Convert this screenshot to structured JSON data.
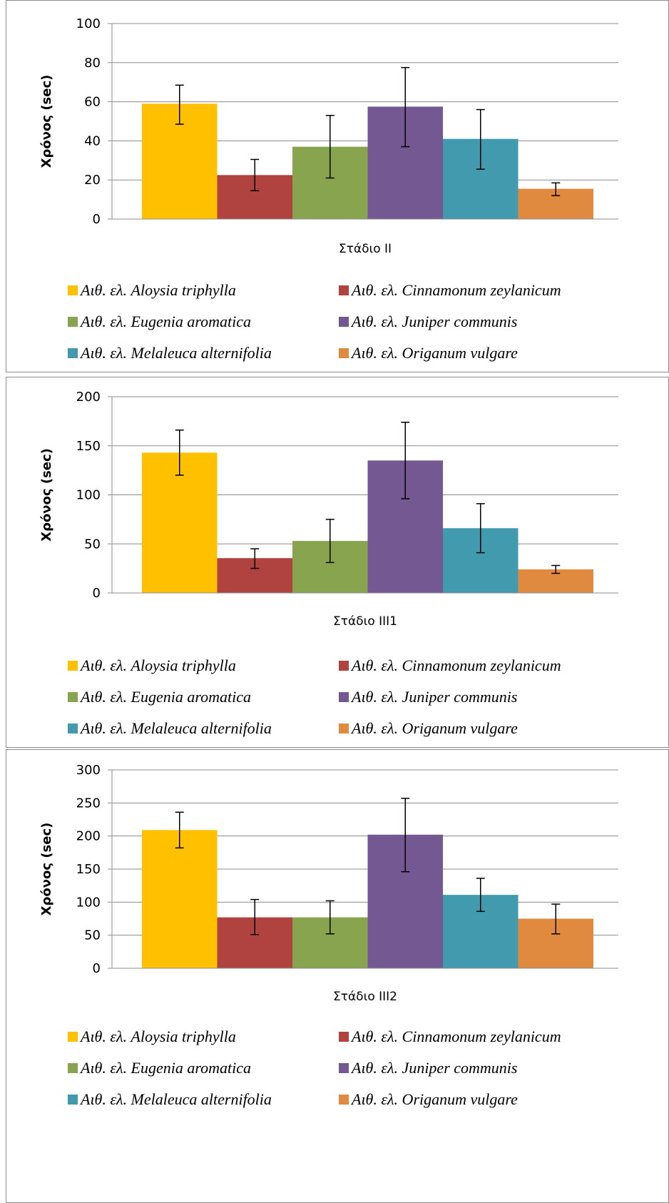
{
  "colors": [
    "#FFC000",
    "#B0433F",
    "#88A44F",
    "#735891",
    "#419AAE",
    "#E08A40"
  ],
  "legend": [
    "Αιθ. ελ. Aloysia triphylla",
    "Αιθ. ελ. Cinnamonum zeylanicum",
    "Αιθ. ελ. Eugenia aromatica",
    "Αιθ. ελ. Juniper communis",
    "Αιθ. ελ. Melaleuca alternifolia",
    "Αιθ. ελ. Origanum vulgare"
  ],
  "chart_data": [
    {
      "type": "bar",
      "ylabel": "Χρόνος (sec)",
      "category": "Στάδιο ΙΙ",
      "ylim": [
        0,
        100
      ],
      "yticks": [
        0,
        20,
        40,
        60,
        80,
        100
      ],
      "series": [
        {
          "name": "Αιθ. ελ. Aloysia triphylla",
          "value": 59,
          "error": [
            48.5,
            68.5
          ]
        },
        {
          "name": "Αιθ. ελ. Cinnamonum zeylanicum",
          "value": 22.5,
          "error": [
            14.5,
            30.5
          ]
        },
        {
          "name": "Αιθ. ελ. Eugenia aromatica",
          "value": 37,
          "error": [
            21,
            53
          ]
        },
        {
          "name": "Αιθ. ελ. Juniper communis",
          "value": 57.5,
          "error": [
            37,
            77.5
          ]
        },
        {
          "name": "Αιθ. ελ. Melaleuca alternifolia",
          "value": 41,
          "error": [
            25.5,
            56
          ]
        },
        {
          "name": "Αιθ. ελ. Origanum vulgare",
          "value": 15.5,
          "error": [
            12,
            18.5
          ]
        }
      ],
      "grid": true,
      "legend_position": "bottom"
    },
    {
      "type": "bar",
      "ylabel": "Χρόνος (sec)",
      "category": "Στάδιο ΙΙΙ1",
      "ylim": [
        0,
        200
      ],
      "yticks": [
        0,
        50,
        100,
        150,
        200
      ],
      "series": [
        {
          "name": "Αιθ. ελ. Aloysia triphylla",
          "value": 143,
          "error": [
            120,
            166
          ]
        },
        {
          "name": "Αιθ. ελ. Cinnamonum zeylanicum",
          "value": 35.5,
          "error": [
            25,
            45
          ]
        },
        {
          "name": "Αιθ. ελ. Eugenia aromatica",
          "value": 53,
          "error": [
            31,
            75
          ]
        },
        {
          "name": "Αιθ. ελ. Juniper communis",
          "value": 135,
          "error": [
            96,
            174
          ]
        },
        {
          "name": "Αιθ. ελ. Melaleuca alternifolia",
          "value": 66,
          "error": [
            41,
            91
          ]
        },
        {
          "name": "Αιθ. ελ. Origanum vulgare",
          "value": 24,
          "error": [
            20,
            28
          ]
        }
      ],
      "grid": true,
      "legend_position": "bottom"
    },
    {
      "type": "bar",
      "ylabel": "Χρόνος (sec)",
      "category": "Στάδιο ΙΙΙ2",
      "ylim": [
        0,
        300
      ],
      "yticks": [
        0,
        50,
        100,
        150,
        200,
        250,
        300
      ],
      "series": [
        {
          "name": "Αιθ. ελ. Aloysia triphylla",
          "value": 209,
          "error": [
            182,
            236
          ]
        },
        {
          "name": "Αιθ. ελ. Cinnamonum zeylanicum",
          "value": 77,
          "error": [
            51,
            104
          ]
        },
        {
          "name": "Αιθ. ελ. Eugenia aromatica",
          "value": 77,
          "error": [
            52,
            102
          ]
        },
        {
          "name": "Αιθ. ελ. Juniper communis",
          "value": 202,
          "error": [
            146,
            257
          ]
        },
        {
          "name": "Αιθ. ελ. Melaleuca alternifolia",
          "value": 111,
          "error": [
            86,
            136
          ]
        },
        {
          "name": "Αιθ. ελ. Origanum vulgare",
          "value": 75,
          "error": [
            52,
            97
          ]
        }
      ],
      "grid": true,
      "legend_position": "bottom"
    }
  ]
}
